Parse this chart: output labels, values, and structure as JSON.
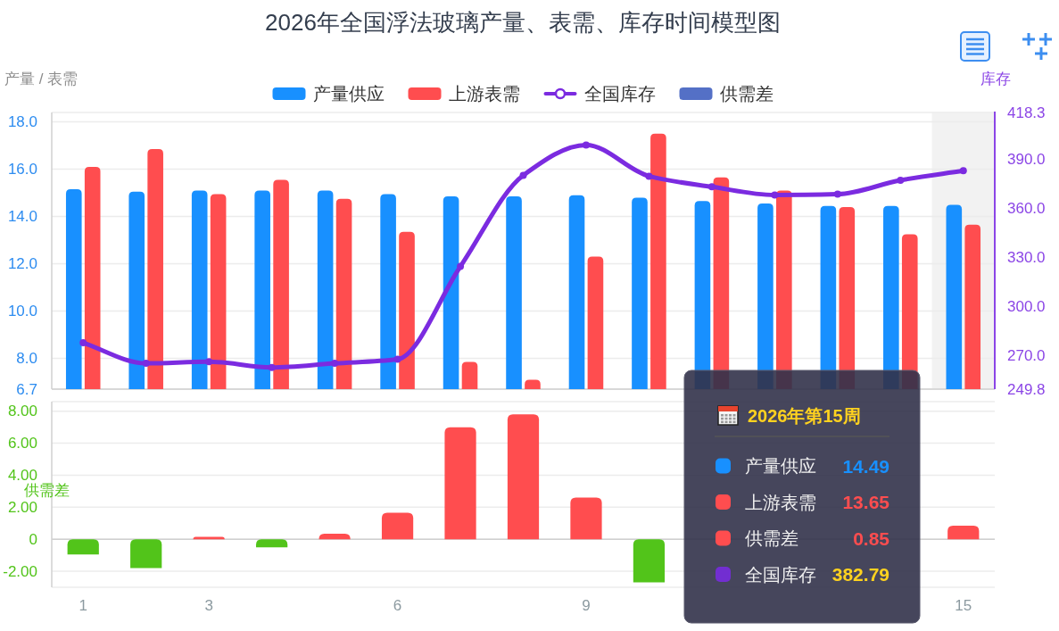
{
  "chart_data": [
    {
      "type": "bar",
      "title": "2026年全国浮法玻璃产量、表需、库存时间模型图",
      "ylabel": "产量 / 表需",
      "y2label": "库存",
      "categories": [
        "1",
        null,
        "3",
        null,
        null,
        "6",
        null,
        null,
        "9",
        null,
        null,
        null,
        null,
        null,
        "15"
      ],
      "series": [
        {
          "name": "产量供应",
          "color": "#1890ff",
          "values": [
            15.15,
            15.05,
            15.1,
            15.1,
            15.1,
            14.95,
            14.85,
            14.85,
            14.9,
            14.8,
            14.65,
            14.55,
            14.45,
            14.45,
            14.49
          ]
        },
        {
          "name": "上游表需",
          "color": "#ff4d4f",
          "values": [
            16.1,
            16.85,
            14.95,
            15.55,
            14.75,
            13.35,
            7.85,
            7.1,
            12.3,
            17.5,
            15.65,
            15.1,
            14.4,
            13.25,
            13.65
          ]
        },
        {
          "name": "全国库存",
          "type": "line",
          "axis": "y2",
          "color": "#7b2be0",
          "values": [
            278,
            265.5,
            266.5,
            263,
            265.5,
            268,
            324.5,
            380,
            398.5,
            379.5,
            373,
            368,
            368.5,
            377,
            382.79
          ]
        }
      ],
      "ylim": [
        6.7,
        18.4
      ],
      "yticks": [
        6.7,
        {
          "value": 8,
          "label": "8.0"
        },
        {
          "value": 10,
          "label": "10.0"
        },
        {
          "value": 12,
          "label": "12.0"
        },
        {
          "value": 14,
          "label": "14.0"
        },
        {
          "value": 16,
          "label": "16.0"
        },
        {
          "value": 18,
          "label": "18.0"
        }
      ],
      "y2lim": [
        249.8,
        418.3
      ],
      "y2ticks": [
        249.8,
        {
          "value": 270,
          "label": "270.0"
        },
        {
          "value": 300,
          "label": "300.0"
        },
        {
          "value": 330,
          "label": "330.0"
        },
        {
          "value": 360,
          "label": "360.0"
        },
        {
          "value": 390,
          "label": "390.0"
        },
        418.3
      ],
      "grid": "y",
      "legend": "top",
      "tick_labels": "y",
      "marker": "circle",
      "bands": [
        {
          "axis": "x",
          "from": "15",
          "to": "15",
          "color": "#f2f2f2"
        }
      ]
    },
    {
      "type": "bar",
      "ylabel": "供需差",
      "categories": [
        "1",
        null,
        "3",
        null,
        null,
        "6",
        null,
        null,
        "9",
        null,
        null,
        null,
        null,
        null,
        "15"
      ],
      "series": [
        {
          "name": "供需差",
          "color": "#5470c6",
          "colors": [
            "#52c41a",
            "#52c41a",
            "#ff4d4f",
            "#52c41a",
            "#ff4d4f",
            "#ff4d4f",
            "#ff4d4f",
            "#ff4d4f",
            "#ff4d4f",
            "#52c41a",
            null,
            null,
            null,
            null,
            "#ff4d4f"
          ],
          "values": [
            -0.95,
            -1.8,
            0.15,
            -0.5,
            0.35,
            1.65,
            7.0,
            7.8,
            2.6,
            -2.7,
            null,
            null,
            null,
            null,
            0.85
          ]
        }
      ],
      "ylim": [
        -3,
        8.6
      ],
      "yticks": [
        {
          "value": -2,
          "label": "-2.00"
        },
        0,
        {
          "value": 2,
          "label": "2.00"
        },
        {
          "value": 4,
          "label": "4.00"
        },
        {
          "value": 6,
          "label": "6.00"
        },
        {
          "value": 8,
          "label": "8.00"
        }
      ],
      "grid": "y",
      "legend": "top",
      "annotations": [
        "2026年第15周",
        "产量供应",
        "14.49",
        "上游表需",
        "13.65",
        "供需差",
        "0.85",
        "全国库存",
        "382.79"
      ]
    }
  ]
}
